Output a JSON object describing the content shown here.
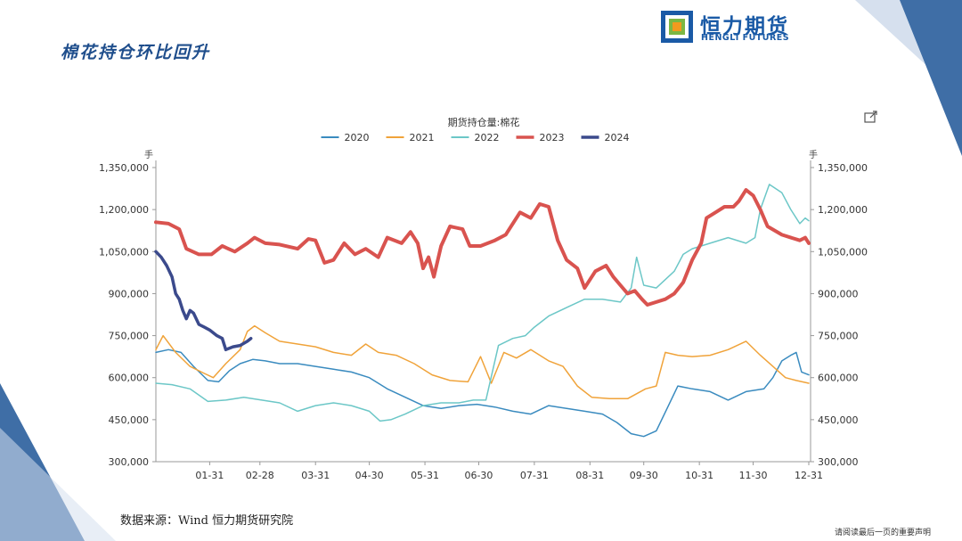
{
  "slide": {
    "title": "棉花持仓环比回升",
    "source": "数据来源：Wind 恒力期货研究院",
    "disclaimer": "请阅读最后一页的重要声明"
  },
  "logo": {
    "cn": "恒力期货",
    "en": "HENGLI FUTURES",
    "colors": {
      "blue": "#1a5aa6",
      "green": "#7cb742",
      "orange": "#f39a1e"
    }
  },
  "icons": {
    "export": "export-icon"
  },
  "chart_data": {
    "type": "line",
    "title": "期货持仓量:棉花",
    "ylabel_left": "手",
    "ylabel_right": "手",
    "ylim": [
      300000,
      1350000
    ],
    "yticks": [
      300000,
      450000,
      600000,
      750000,
      900000,
      1050000,
      1200000,
      1350000
    ],
    "ytick_labels": [
      "300,000",
      "450,000",
      "600,000",
      "750,000",
      "900,000",
      "1,050,000",
      "1,200,000",
      "1,350,000"
    ],
    "x_domain": [
      1,
      366
    ],
    "x_axis": "day of year",
    "xticks": [
      31,
      59,
      90,
      120,
      151,
      181,
      212,
      243,
      273,
      304,
      334,
      365
    ],
    "xtick_labels": [
      "01-31",
      "02-28",
      "03-31",
      "04-30",
      "05-31",
      "06-30",
      "07-31",
      "08-31",
      "09-30",
      "10-31",
      "11-30",
      "12-31"
    ],
    "legend_position": "top",
    "grid": false,
    "series": [
      {
        "name": "2020",
        "color": "#3a8bbf",
        "width": 1.5,
        "points": [
          [
            1,
            690000
          ],
          [
            8,
            700000
          ],
          [
            15,
            690000
          ],
          [
            22,
            640000
          ],
          [
            30,
            590000
          ],
          [
            36,
            585000
          ],
          [
            42,
            625000
          ],
          [
            48,
            650000
          ],
          [
            55,
            665000
          ],
          [
            62,
            660000
          ],
          [
            70,
            650000
          ],
          [
            80,
            650000
          ],
          [
            90,
            640000
          ],
          [
            100,
            630000
          ],
          [
            110,
            620000
          ],
          [
            120,
            600000
          ],
          [
            130,
            560000
          ],
          [
            140,
            530000
          ],
          [
            150,
            500000
          ],
          [
            160,
            490000
          ],
          [
            170,
            500000
          ],
          [
            180,
            505000
          ],
          [
            190,
            495000
          ],
          [
            200,
            480000
          ],
          [
            210,
            470000
          ],
          [
            220,
            500000
          ],
          [
            230,
            490000
          ],
          [
            240,
            480000
          ],
          [
            250,
            470000
          ],
          [
            258,
            440000
          ],
          [
            266,
            400000
          ],
          [
            273,
            390000
          ],
          [
            280,
            410000
          ],
          [
            286,
            490000
          ],
          [
            292,
            570000
          ],
          [
            300,
            560000
          ],
          [
            310,
            550000
          ],
          [
            320,
            520000
          ],
          [
            330,
            550000
          ],
          [
            340,
            560000
          ],
          [
            345,
            600000
          ],
          [
            350,
            660000
          ],
          [
            355,
            680000
          ],
          [
            358,
            690000
          ],
          [
            361,
            620000
          ],
          [
            365,
            610000
          ]
        ]
      },
      {
        "name": "2021",
        "color": "#f0a33a",
        "width": 1.5,
        "points": [
          [
            1,
            700000
          ],
          [
            5,
            750000
          ],
          [
            12,
            690000
          ],
          [
            20,
            640000
          ],
          [
            28,
            615000
          ],
          [
            33,
            600000
          ],
          [
            40,
            650000
          ],
          [
            48,
            700000
          ],
          [
            52,
            765000
          ],
          [
            56,
            785000
          ],
          [
            62,
            760000
          ],
          [
            70,
            730000
          ],
          [
            80,
            720000
          ],
          [
            90,
            710000
          ],
          [
            100,
            690000
          ],
          [
            110,
            680000
          ],
          [
            118,
            720000
          ],
          [
            125,
            690000
          ],
          [
            135,
            680000
          ],
          [
            145,
            650000
          ],
          [
            155,
            610000
          ],
          [
            165,
            590000
          ],
          [
            175,
            585000
          ],
          [
            182,
            675000
          ],
          [
            188,
            580000
          ],
          [
            195,
            690000
          ],
          [
            202,
            670000
          ],
          [
            210,
            700000
          ],
          [
            220,
            660000
          ],
          [
            228,
            640000
          ],
          [
            236,
            570000
          ],
          [
            244,
            530000
          ],
          [
            254,
            525000
          ],
          [
            264,
            525000
          ],
          [
            274,
            560000
          ],
          [
            280,
            570000
          ],
          [
            285,
            690000
          ],
          [
            292,
            680000
          ],
          [
            300,
            675000
          ],
          [
            310,
            680000
          ],
          [
            320,
            700000
          ],
          [
            330,
            730000
          ],
          [
            338,
            680000
          ],
          [
            345,
            640000
          ],
          [
            352,
            600000
          ],
          [
            358,
            590000
          ],
          [
            365,
            580000
          ]
        ]
      },
      {
        "name": "2022",
        "color": "#6cc7c7",
        "width": 1.5,
        "points": [
          [
            1,
            580000
          ],
          [
            10,
            575000
          ],
          [
            20,
            560000
          ],
          [
            30,
            515000
          ],
          [
            40,
            520000
          ],
          [
            50,
            530000
          ],
          [
            60,
            520000
          ],
          [
            70,
            510000
          ],
          [
            80,
            480000
          ],
          [
            90,
            500000
          ],
          [
            100,
            510000
          ],
          [
            110,
            500000
          ],
          [
            120,
            480000
          ],
          [
            126,
            445000
          ],
          [
            132,
            450000
          ],
          [
            140,
            470000
          ],
          [
            150,
            500000
          ],
          [
            160,
            510000
          ],
          [
            170,
            510000
          ],
          [
            178,
            520000
          ],
          [
            185,
            520000
          ],
          [
            192,
            715000
          ],
          [
            200,
            740000
          ],
          [
            207,
            750000
          ],
          [
            212,
            780000
          ],
          [
            220,
            820000
          ],
          [
            230,
            850000
          ],
          [
            240,
            880000
          ],
          [
            250,
            880000
          ],
          [
            260,
            870000
          ],
          [
            266,
            920000
          ],
          [
            269,
            1030000
          ],
          [
            273,
            930000
          ],
          [
            280,
            920000
          ],
          [
            290,
            980000
          ],
          [
            295,
            1040000
          ],
          [
            300,
            1060000
          ],
          [
            310,
            1080000
          ],
          [
            320,
            1100000
          ],
          [
            330,
            1080000
          ],
          [
            335,
            1100000
          ],
          [
            338,
            1200000
          ],
          [
            343,
            1290000
          ],
          [
            350,
            1260000
          ],
          [
            355,
            1200000
          ],
          [
            360,
            1150000
          ],
          [
            363,
            1170000
          ],
          [
            365,
            1160000
          ]
        ]
      },
      {
        "name": "2023",
        "color": "#d9534f",
        "width": 4,
        "points": [
          [
            1,
            1155000
          ],
          [
            8,
            1150000
          ],
          [
            14,
            1130000
          ],
          [
            18,
            1060000
          ],
          [
            25,
            1040000
          ],
          [
            32,
            1040000
          ],
          [
            38,
            1070000
          ],
          [
            45,
            1050000
          ],
          [
            52,
            1080000
          ],
          [
            56,
            1100000
          ],
          [
            62,
            1080000
          ],
          [
            70,
            1075000
          ],
          [
            80,
            1060000
          ],
          [
            86,
            1095000
          ],
          [
            90,
            1090000
          ],
          [
            95,
            1010000
          ],
          [
            100,
            1020000
          ],
          [
            106,
            1080000
          ],
          [
            112,
            1040000
          ],
          [
            118,
            1060000
          ],
          [
            125,
            1030000
          ],
          [
            130,
            1100000
          ],
          [
            138,
            1080000
          ],
          [
            143,
            1120000
          ],
          [
            147,
            1080000
          ],
          [
            150,
            990000
          ],
          [
            153,
            1030000
          ],
          [
            156,
            960000
          ],
          [
            160,
            1070000
          ],
          [
            165,
            1140000
          ],
          [
            172,
            1130000
          ],
          [
            176,
            1070000
          ],
          [
            182,
            1070000
          ],
          [
            190,
            1090000
          ],
          [
            196,
            1110000
          ],
          [
            204,
            1190000
          ],
          [
            210,
            1170000
          ],
          [
            215,
            1220000
          ],
          [
            220,
            1210000
          ],
          [
            225,
            1090000
          ],
          [
            230,
            1020000
          ],
          [
            236,
            990000
          ],
          [
            240,
            920000
          ],
          [
            246,
            980000
          ],
          [
            252,
            1000000
          ],
          [
            256,
            960000
          ],
          [
            260,
            930000
          ],
          [
            264,
            900000
          ],
          [
            268,
            910000
          ],
          [
            272,
            880000
          ],
          [
            275,
            860000
          ],
          [
            285,
            880000
          ],
          [
            290,
            900000
          ],
          [
            295,
            940000
          ],
          [
            300,
            1020000
          ],
          [
            305,
            1080000
          ],
          [
            308,
            1170000
          ],
          [
            313,
            1190000
          ],
          [
            318,
            1210000
          ],
          [
            323,
            1210000
          ],
          [
            326,
            1230000
          ],
          [
            330,
            1270000
          ],
          [
            334,
            1250000
          ],
          [
            338,
            1200000
          ],
          [
            342,
            1140000
          ],
          [
            350,
            1110000
          ],
          [
            360,
            1090000
          ],
          [
            363,
            1100000
          ],
          [
            365,
            1080000
          ]
        ]
      },
      {
        "name": "2024",
        "color": "#3b4a8c",
        "width": 3.5,
        "points": [
          [
            1,
            1050000
          ],
          [
            4,
            1030000
          ],
          [
            7,
            1000000
          ],
          [
            10,
            960000
          ],
          [
            12,
            900000
          ],
          [
            14,
            880000
          ],
          [
            16,
            840000
          ],
          [
            18,
            810000
          ],
          [
            20,
            840000
          ],
          [
            22,
            830000
          ],
          [
            25,
            790000
          ],
          [
            28,
            780000
          ],
          [
            31,
            770000
          ],
          [
            35,
            750000
          ],
          [
            38,
            740000
          ],
          [
            40,
            700000
          ],
          [
            44,
            710000
          ],
          [
            48,
            715000
          ],
          [
            52,
            730000
          ],
          [
            54,
            740000
          ]
        ]
      }
    ]
  }
}
